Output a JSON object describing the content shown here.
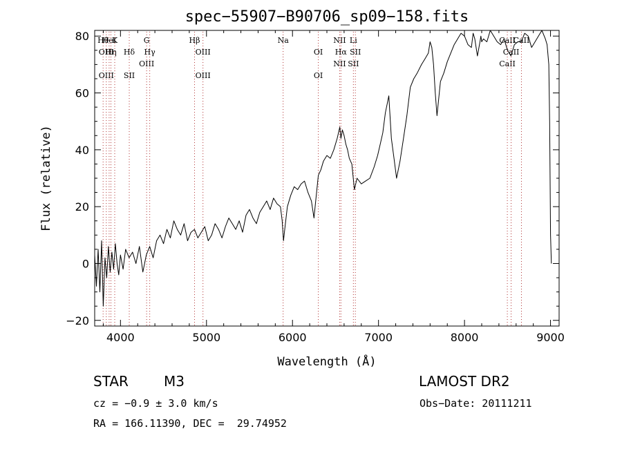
{
  "chart_data": {
    "type": "line",
    "title": "spec−55907−B90706_sp09−158.fits",
    "xlabel": "Wavelength (Å)",
    "ylabel": "Flux (relative)",
    "xlim": [
      3700,
      9100
    ],
    "ylim": [
      -22,
      82
    ],
    "xticks": [
      4000,
      5000,
      6000,
      7000,
      8000,
      9000
    ],
    "xtick_labels": [
      "4000",
      "5000",
      "6000",
      "7000",
      "8000",
      "9000"
    ],
    "yticks": [
      -20,
      0,
      20,
      40,
      60,
      80
    ],
    "ytick_labels": [
      "−20",
      "0",
      "20",
      "40",
      "60",
      "80"
    ],
    "grid": false,
    "series": [
      {
        "x": [
          3700,
          3720,
          3740,
          3760,
          3780,
          3800,
          3820,
          3840,
          3860,
          3880,
          3900,
          3920,
          3940,
          3960,
          3980,
          4000,
          4030,
          4060,
          4100,
          4140,
          4180,
          4220,
          4260,
          4300,
          4340,
          4380,
          4420,
          4460,
          4500,
          4540,
          4580,
          4620,
          4660,
          4700,
          4740,
          4780,
          4820,
          4860,
          4900,
          4940,
          4980,
          5020,
          5060,
          5100,
          5140,
          5180,
          5220,
          5260,
          5300,
          5340,
          5380,
          5420,
          5460,
          5500,
          5540,
          5580,
          5620,
          5660,
          5700,
          5740,
          5780,
          5820,
          5860,
          5880,
          5895,
          5910,
          5940,
          5980,
          6020,
          6060,
          6100,
          6140,
          6180,
          6220,
          6250,
          6270,
          6300,
          6330,
          6360,
          6400,
          6440,
          6480,
          6520,
          6550,
          6563,
          6580,
          6600,
          6620,
          6640,
          6660,
          6690,
          6720,
          6750,
          6800,
          6850,
          6900,
          6950,
          6990,
          7020,
          7050,
          7080,
          7120,
          7150,
          7180,
          7210,
          7250,
          7290,
          7330,
          7370,
          7410,
          7450,
          7500,
          7540,
          7580,
          7600,
          7620,
          7640,
          7660,
          7680,
          7700,
          7720,
          7760,
          7800,
          7840,
          7880,
          7920,
          7960,
          8000,
          8040,
          8080,
          8100,
          8120,
          8150,
          8180,
          8190,
          8200,
          8220,
          8260,
          8300,
          8340,
          8380,
          8420,
          8460,
          8500,
          8540,
          8580,
          8620,
          8660,
          8700,
          8740,
          8780,
          8820,
          8860,
          8900,
          8940,
          8960,
          8980,
          8990,
          9000,
          9010
        ],
        "y": [
          3,
          -8,
          5,
          -10,
          8,
          -15,
          2,
          -5,
          6,
          -3,
          4,
          -2,
          7,
          0,
          -4,
          3,
          -2,
          5,
          2,
          4,
          0,
          6,
          -3,
          3,
          6,
          2,
          8,
          10,
          7,
          12,
          9,
          15,
          12,
          10,
          14,
          8,
          11,
          12,
          9,
          11,
          13,
          8,
          10,
          14,
          12,
          9,
          13,
          16,
          14,
          12,
          15,
          11,
          17,
          19,
          16,
          14,
          18,
          20,
          22,
          19,
          23,
          21,
          20,
          15,
          8,
          12,
          20,
          24,
          27,
          26,
          28,
          29,
          25,
          22,
          16,
          22,
          31,
          33,
          36,
          38,
          37,
          40,
          44,
          48,
          44,
          47,
          45,
          42,
          40,
          37,
          35,
          26,
          30,
          28,
          29,
          30,
          34,
          38,
          42,
          46,
          53,
          59,
          44,
          37,
          30,
          36,
          44,
          52,
          62,
          65,
          67,
          70,
          72,
          74,
          78,
          76,
          70,
          60,
          52,
          58,
          64,
          67,
          71,
          74,
          77,
          79,
          81,
          80,
          77,
          76,
          81,
          79,
          73,
          78,
          80,
          78,
          79,
          78,
          82,
          80,
          78,
          77,
          79,
          75,
          73,
          77,
          78,
          78,
          81,
          80,
          76,
          78,
          80,
          82,
          79,
          77,
          70,
          50,
          10,
          0
        ]
      }
    ],
    "line_markers": [
      {
        "w": 3798,
        "labels": [
          "Hθ"
        ]
      },
      {
        "w": 3835,
        "labels": [
          "OIII",
          "OIII"
        ]
      },
      {
        "w": 3868,
        "labels": [
          "HeI"
        ]
      },
      {
        "w": 3889,
        "labels": [
          "Hη"
        ]
      },
      {
        "w": 3933,
        "labels": [
          "K"
        ]
      },
      {
        "w": 4102,
        "labels": [
          "Hδ",
          "SII"
        ]
      },
      {
        "w": 4304,
        "labels": [
          "G",
          "OIII"
        ]
      },
      {
        "w": 4340,
        "labels": [
          "Hγ"
        ]
      },
      {
        "w": 4861,
        "labels": [
          "Hβ"
        ]
      },
      {
        "w": 4959,
        "labels": [
          "OIII",
          "OIII"
        ]
      },
      {
        "w": 5891,
        "labels": [
          "Na"
        ]
      },
      {
        "w": 6300,
        "labels": [
          "OI",
          "OI"
        ]
      },
      {
        "w": 6548,
        "labels": [
          "NII",
          "NII"
        ]
      },
      {
        "w": 6563,
        "labels": [
          "Hα"
        ]
      },
      {
        "w": 6708,
        "labels": [
          "Li",
          "SII"
        ]
      },
      {
        "w": 6731,
        "labels": [
          "SII"
        ]
      },
      {
        "w": 8498,
        "labels": [
          "CaII",
          "CaII"
        ]
      },
      {
        "w": 8542,
        "labels": [
          "CaII"
        ]
      },
      {
        "w": 8662,
        "labels": [
          "CaII"
        ]
      }
    ]
  },
  "info": {
    "object_class": "STAR",
    "subclass": "M3",
    "survey": "LAMOST DR2",
    "redshift": "cz = −0.9 ± 3.0 km/s",
    "obs_date": "Obs−Date: 20111211",
    "coords": "RA = 166.11390, DEC =  29.74952"
  }
}
